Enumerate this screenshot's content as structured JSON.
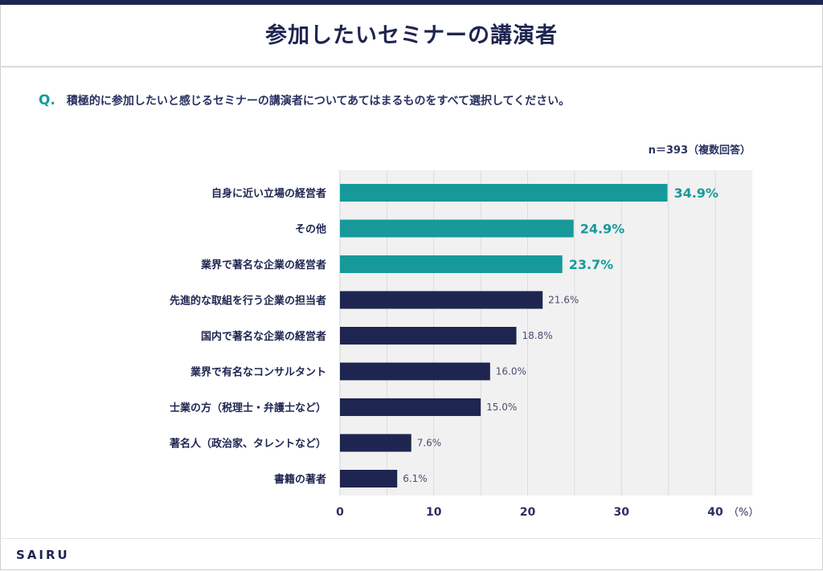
{
  "header": {
    "title": "参加したいセミナーの講演者"
  },
  "question": {
    "prefix": "Q.",
    "text": "積極的に参加したいと感じるセミナーの講演者についてあてはまるものをすべて選択してください。"
  },
  "sample_note": "n＝393（複数回答）",
  "footer": {
    "brand": "SAIRU"
  },
  "colors": {
    "highlight": "#17999a",
    "default": "#1e2550",
    "plot_bg": "#f1f1f1",
    "grid": "#dcdcdc"
  },
  "chart_data": {
    "type": "bar",
    "orientation": "horizontal",
    "title": "参加したいセミナーの講演者",
    "xlabel": "",
    "unit_label": "（%）",
    "ylabel": "",
    "xlim": [
      0,
      44
    ],
    "xticks": [
      0,
      10,
      20,
      30,
      40
    ],
    "grid": true,
    "grid_step": 5,
    "categories": [
      "自身に近い立場の経営者",
      "その他",
      "業界で著名な企業の経営者",
      "先進的な取組を行う企業の担当者",
      "国内で著名な企業の経営者",
      "業界で有名なコンサルタント",
      "士業の方（税理士・弁護士など）",
      "著名人（政治家、タレントなど）",
      "書籍の著者"
    ],
    "values": [
      34.9,
      24.9,
      23.7,
      21.6,
      18.8,
      16.0,
      15.0,
      7.6,
      6.1
    ],
    "value_labels": [
      "34.9%",
      "24.9%",
      "23.7%",
      "21.6%",
      "18.8%",
      "16.0%",
      "15.0%",
      "7.6%",
      "6.1%"
    ],
    "highlighted": [
      true,
      true,
      true,
      false,
      false,
      false,
      false,
      false,
      false
    ]
  }
}
